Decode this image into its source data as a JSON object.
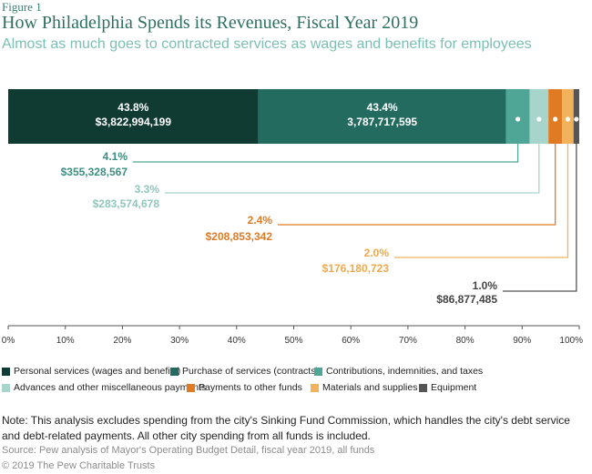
{
  "header": {
    "figure_label": "Figure 1",
    "title": "How Philadelphia Spends its Revenues, Fiscal Year 2019",
    "subtitle": "Almost as much goes to contracted services as wages and benefits for employees"
  },
  "chart_data": {
    "type": "bar",
    "orientation": "horizontal-stacked-100",
    "xlim": [
      0,
      100
    ],
    "x_ticks": [
      "0%",
      "10%",
      "20%",
      "30%",
      "40%",
      "50%",
      "60%",
      "70%",
      "80%",
      "90%",
      "100%"
    ],
    "series": [
      {
        "name": "Personal services (wages and benefits)",
        "percent": 43.8,
        "percent_label": "43.8%",
        "amount_label": "$3,822,994,199",
        "color": "#0f3b33"
      },
      {
        "name": "Purchase of services (contracts)",
        "percent": 43.4,
        "percent_label": "43.4%",
        "amount_label": "3,787,717,595",
        "color": "#236b5f"
      },
      {
        "name": "Contributions, indemnities, and taxes",
        "percent": 4.1,
        "percent_label": "4.1%",
        "amount_label": "$355,328,567",
        "color": "#4fa596"
      },
      {
        "name": "Advances and other miscellaneous payments",
        "percent": 3.3,
        "percent_label": "3.3%",
        "amount_label": "$283,574,678",
        "color": "#a7d4cb"
      },
      {
        "name": "Payments to other funds",
        "percent": 2.4,
        "percent_label": "2.4%",
        "amount_label": "$208,853,342",
        "color": "#e07b24"
      },
      {
        "name": "Materials and supplies",
        "percent": 2.0,
        "percent_label": "2.0%",
        "amount_label": "$176,180,723",
        "color": "#f2b25c"
      },
      {
        "name": "Equipment",
        "percent": 1.0,
        "percent_label": "1.0%",
        "amount_label": "$86,877,485",
        "color": "#555555"
      }
    ]
  },
  "footer": {
    "note": "Note: This analysis excludes spending from the city's Sinking Fund Commission, which handles the city's debt service and debt-related payments. All other city spending from all funds is included.",
    "source": "Source: Pew analysis of Mayor's Operating Budget Detail, fiscal year 2019, all funds",
    "copyright": "© 2019 The Pew Charitable Trusts"
  }
}
